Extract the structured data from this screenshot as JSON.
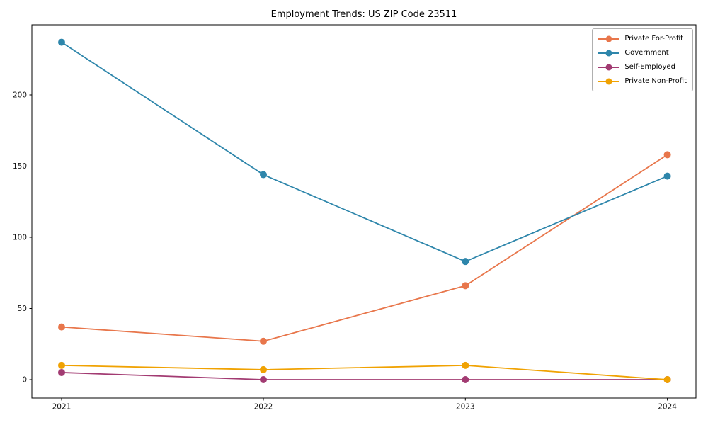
{
  "chart_data": {
    "type": "line",
    "title": "Employment Trends: US ZIP Code 23511",
    "xlabel": "",
    "ylabel": "",
    "categories": [
      "2021",
      "2022",
      "2023",
      "2024"
    ],
    "series": [
      {
        "name": "Private For-Profit",
        "color": "#E8764B",
        "values": [
          37,
          27,
          66,
          158
        ]
      },
      {
        "name": "Government",
        "color": "#2E86AB",
        "values": [
          237,
          144,
          83,
          143
        ]
      },
      {
        "name": "Self-Employed",
        "color": "#A23B72",
        "values": [
          5,
          0,
          0,
          0
        ]
      },
      {
        "name": "Private Non-Profit",
        "color": "#F0A202",
        "values": [
          10,
          7,
          10,
          0
        ]
      }
    ],
    "yticks": [
      0,
      50,
      100,
      150,
      200
    ],
    "ylim": [
      -13,
      249
    ],
    "grid": false,
    "legend_position": "upper right",
    "marker": "o",
    "spine_color": "#000000",
    "tick_label_color": "#151515"
  }
}
